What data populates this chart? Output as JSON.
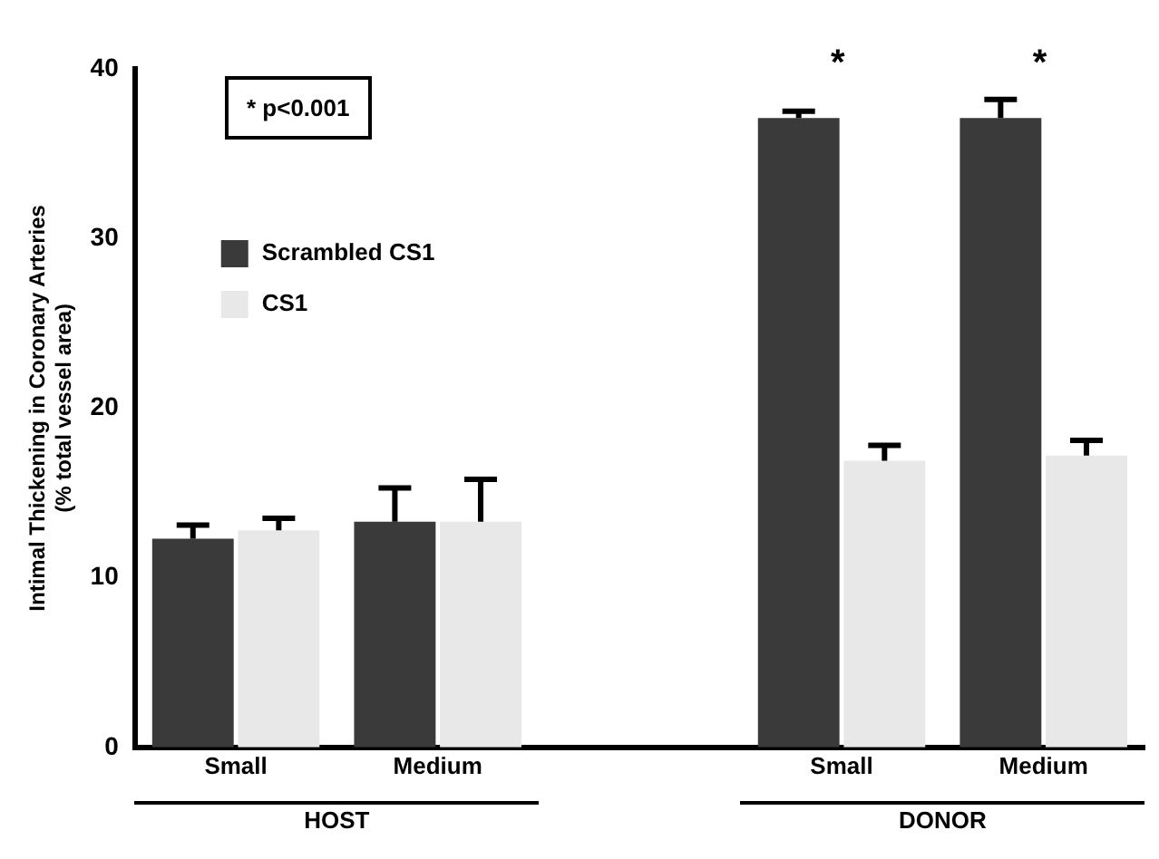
{
  "chart_data": {
    "type": "bar",
    "ylabel": "Intimal Thickening in Coronary Arteries\n(% total vessel area)",
    "categories": [
      "Small",
      "Medium",
      null,
      "Small",
      "Medium"
    ],
    "series": [
      {
        "name": "Scrambled CS1",
        "color": "#3a3a3a",
        "values": [
          12.3,
          13.3,
          null,
          37.1,
          37.1
        ],
        "errors": [
          [
            12.3,
            13.1
          ],
          [
            13.3,
            15.3
          ],
          null,
          [
            37.1,
            37.5
          ],
          [
            37.1,
            38.2
          ]
        ]
      },
      {
        "name": "CS1",
        "color": "#e8e8e8",
        "values": [
          12.8,
          13.3,
          null,
          16.9,
          17.2
        ],
        "errors": [
          [
            12.8,
            13.5
          ],
          [
            13.3,
            15.8
          ],
          null,
          [
            16.9,
            17.8
          ],
          [
            17.2,
            18.1
          ]
        ]
      }
    ],
    "ylim": [
      0,
      40
    ],
    "yticks": [
      0,
      10,
      20,
      30,
      40
    ],
    "grid": false,
    "legend": "top left",
    "annotations": [
      "* p<0.001",
      "*",
      "*",
      "HOST",
      "DONOR"
    ]
  }
}
